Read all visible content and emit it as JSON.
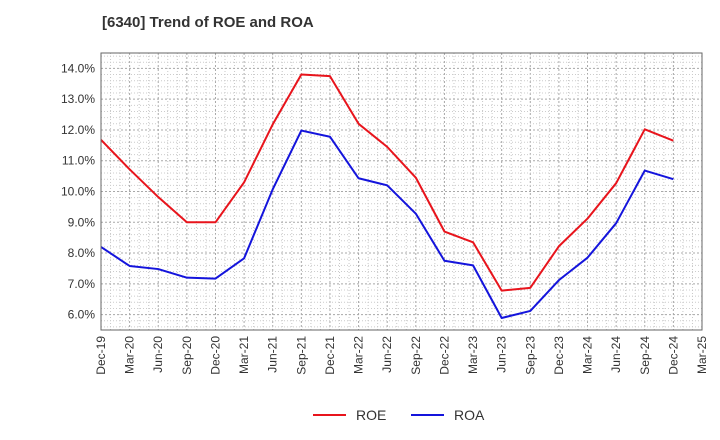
{
  "chart_data": {
    "type": "line",
    "title": "[6340]  Trend of ROE and ROA",
    "xlabel": "",
    "ylabel": "",
    "categories": [
      "Dec-19",
      "Mar-20",
      "Jun-20",
      "Sep-20",
      "Dec-20",
      "Mar-21",
      "Jun-21",
      "Sep-21",
      "Dec-21",
      "Mar-22",
      "Jun-22",
      "Sep-22",
      "Dec-22",
      "Mar-23",
      "Jun-23",
      "Sep-23",
      "Dec-23",
      "Mar-24",
      "Jun-24",
      "Sep-24",
      "Dec-24",
      "Mar-25"
    ],
    "y_ticks": [
      "6.0%",
      "7.0%",
      "8.0%",
      "9.0%",
      "10.0%",
      "11.0%",
      "12.0%",
      "13.0%",
      "14.0%"
    ],
    "ylim": [
      5.5,
      14.5
    ],
    "grid": true,
    "legend_position": "bottom-center",
    "series": [
      {
        "name": "ROE",
        "color": "#e8141c",
        "values": [
          11.68,
          10.72,
          9.82,
          9.0,
          9.0,
          10.3,
          12.18,
          13.8,
          13.75,
          12.2,
          11.45,
          10.45,
          8.7,
          8.35,
          6.78,
          6.87,
          8.22,
          9.12,
          10.27,
          12.02,
          11.65,
          null
        ]
      },
      {
        "name": "ROA",
        "color": "#1414dc",
        "values": [
          8.2,
          7.58,
          7.48,
          7.2,
          7.17,
          7.83,
          10.07,
          11.98,
          11.78,
          10.43,
          10.2,
          9.28,
          7.75,
          7.6,
          5.89,
          6.12,
          7.12,
          7.85,
          8.97,
          10.68,
          10.4,
          null
        ]
      }
    ]
  }
}
